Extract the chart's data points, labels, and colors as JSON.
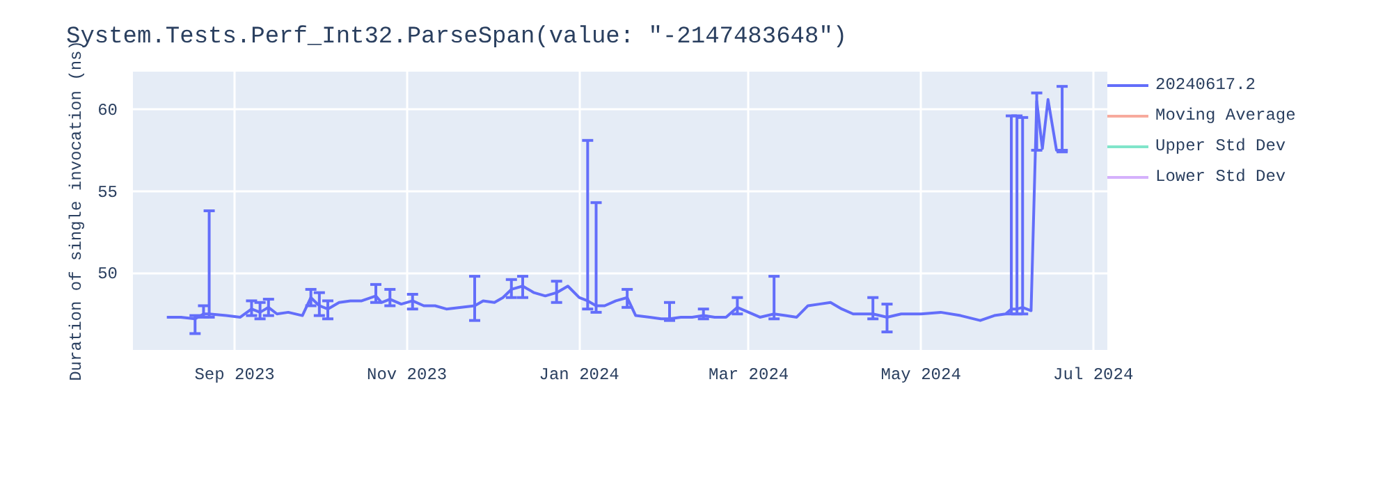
{
  "chart_data": {
    "type": "line",
    "title": "System.Tests.Perf_Int32.ParseSpan(value: \"-2147483648\")",
    "ylabel": "Duration of single invocation (ns)",
    "xlim": [
      "2023-07-27",
      "2024-07-06"
    ],
    "xticks": [
      {
        "value": "2023-09-01",
        "label": "Sep 2023"
      },
      {
        "value": "2023-11-01",
        "label": "Nov 2023"
      },
      {
        "value": "2024-01-01",
        "label": "Jan 2024"
      },
      {
        "value": "2024-03-01",
        "label": "Mar 2024"
      },
      {
        "value": "2024-05-01",
        "label": "May 2024"
      },
      {
        "value": "2024-07-01",
        "label": "Jul 2024"
      }
    ],
    "ylim": [
      45.3,
      62.3
    ],
    "yticks": [
      50,
      55,
      60
    ],
    "grid": true,
    "legend": "top right",
    "marker": "none",
    "line_style": "solid",
    "series": [
      {
        "name": "20240617.2",
        "color": "#636efa",
        "x": [
          "2023-08-08",
          "2023-08-13",
          "2023-08-18",
          "2023-08-21",
          "2023-08-23",
          "2023-08-29",
          "2023-09-03",
          "2023-09-07",
          "2023-09-10",
          "2023-09-13",
          "2023-09-16",
          "2023-09-20",
          "2023-09-25",
          "2023-09-28",
          "2023-10-01",
          "2023-10-04",
          "2023-10-08",
          "2023-10-12",
          "2023-10-16",
          "2023-10-21",
          "2023-10-23",
          "2023-10-26",
          "2023-10-30",
          "2023-11-03",
          "2023-11-07",
          "2023-11-11",
          "2023-11-15",
          "2023-11-25",
          "2023-11-28",
          "2023-12-02",
          "2023-12-05",
          "2023-12-08",
          "2023-12-12",
          "2023-12-16",
          "2023-12-20",
          "2023-12-24",
          "2023-12-28",
          "2024-01-01",
          "2024-01-04",
          "2024-01-07",
          "2024-01-10",
          "2024-01-14",
          "2024-01-18",
          "2024-01-21",
          "2024-01-26",
          "2024-01-30",
          "2024-02-02",
          "2024-02-06",
          "2024-02-10",
          "2024-02-14",
          "2024-02-18",
          "2024-02-22",
          "2024-02-26",
          "2024-03-01",
          "2024-03-05",
          "2024-03-10",
          "2024-03-14",
          "2024-03-18",
          "2024-03-22",
          "2024-03-26",
          "2024-03-30",
          "2024-04-03",
          "2024-04-07",
          "2024-04-14",
          "2024-04-19",
          "2024-04-24",
          "2024-05-01",
          "2024-05-08",
          "2024-05-15",
          "2024-05-22",
          "2024-05-27",
          "2024-05-31",
          "2024-06-02",
          "2024-06-04",
          "2024-06-06",
          "2024-06-09",
          "2024-06-11",
          "2024-06-13",
          "2024-06-15",
          "2024-06-18",
          "2024-06-20",
          "2024-06-22"
        ],
        "values": [
          47.3,
          47.3,
          47.2,
          47.5,
          47.5,
          47.4,
          47.3,
          47.8,
          47.6,
          47.9,
          47.5,
          47.6,
          47.4,
          48.5,
          48.0,
          47.8,
          48.2,
          48.3,
          48.3,
          48.6,
          48.2,
          48.4,
          48.1,
          48.3,
          48.0,
          48.0,
          47.8,
          48.0,
          48.3,
          48.2,
          48.5,
          49.0,
          49.2,
          48.8,
          48.6,
          48.8,
          49.2,
          48.5,
          48.3,
          48.0,
          48.0,
          48.3,
          48.5,
          47.4,
          47.3,
          47.2,
          47.2,
          47.3,
          47.3,
          47.4,
          47.3,
          47.3,
          47.9,
          47.6,
          47.3,
          47.5,
          47.4,
          47.3,
          48.0,
          48.1,
          48.2,
          47.8,
          47.5,
          47.5,
          47.3,
          47.5,
          47.5,
          47.6,
          47.4,
          47.1,
          47.4,
          47.5,
          47.8,
          47.8,
          47.9,
          47.7,
          60.5,
          57.6,
          60.6,
          57.5,
          57.5,
          57.5
        ],
        "errors": [
          null,
          null,
          [
            46.3,
            47.4
          ],
          [
            47.3,
            48.0
          ],
          [
            47.3,
            53.8
          ],
          null,
          null,
          [
            47.4,
            48.3
          ],
          [
            47.2,
            48.2
          ],
          [
            47.4,
            48.4
          ],
          null,
          null,
          null,
          [
            48.0,
            49.0
          ],
          [
            47.4,
            48.8
          ],
          [
            47.2,
            48.3
          ],
          null,
          null,
          null,
          [
            48.2,
            49.3
          ],
          null,
          [
            48.0,
            49.0
          ],
          null,
          [
            47.8,
            48.7
          ],
          null,
          null,
          null,
          [
            47.1,
            49.8
          ],
          null,
          null,
          null,
          [
            48.5,
            49.6
          ],
          [
            48.5,
            49.8
          ],
          null,
          null,
          [
            48.2,
            49.5
          ],
          null,
          null,
          [
            47.8,
            58.1
          ],
          [
            47.6,
            54.3
          ],
          null,
          null,
          [
            47.9,
            49.0
          ],
          null,
          null,
          null,
          [
            47.1,
            48.2
          ],
          null,
          null,
          [
            47.2,
            47.8
          ],
          null,
          null,
          [
            47.5,
            48.5
          ],
          null,
          null,
          [
            47.2,
            49.8
          ],
          null,
          null,
          null,
          null,
          null,
          null,
          null,
          [
            47.2,
            48.5
          ],
          [
            46.4,
            48.1
          ],
          null,
          null,
          null,
          null,
          null,
          null,
          null,
          [
            47.5,
            59.6
          ],
          [
            47.5,
            59.6
          ],
          [
            47.5,
            59.5
          ],
          null,
          [
            57.5,
            61.0
          ],
          null,
          null,
          null,
          [
            57.4,
            61.4
          ],
          null
        ]
      },
      {
        "name": "Moving Average",
        "color": "#f7aa9d"
      },
      {
        "name": "Upper Std Dev",
        "color": "#80e5ca"
      },
      {
        "name": "Lower Std Dev",
        "color": "#d5b1fc"
      }
    ]
  }
}
